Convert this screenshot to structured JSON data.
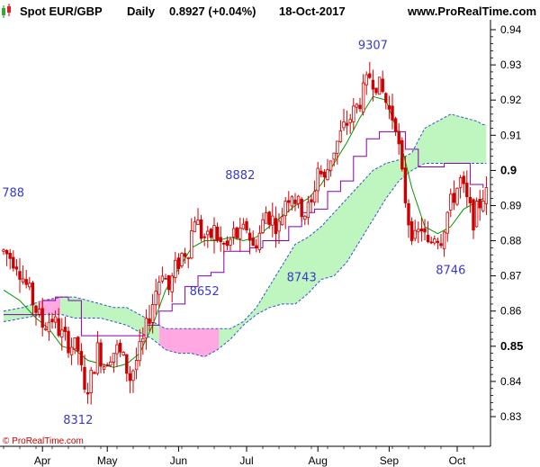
{
  "header": {
    "title": "Spot EUR/GBP",
    "period": "Daily",
    "quote": "0.8927 (+0.04%)",
    "date": "18-Oct-2017",
    "site": "www.ProRealTime.com"
  },
  "copyright": "© ProRealTime.com",
  "colors": {
    "up_candle": "#cc0000",
    "down_candle": "#cc0000",
    "tenkan": "#009900",
    "kijun": "#8800aa",
    "cloud_bull": "#bff5bf",
    "cloud_bear": "#ff99dd",
    "cloud_edge": "#3355cc",
    "annotation": "#3a3ac8"
  },
  "chart_data": {
    "type": "candlestick",
    "indicator": "ichimoku",
    "ylim": [
      0.825,
      0.945
    ],
    "yticks": [
      {
        "v": 0.83,
        "label": "0.83",
        "bold": false
      },
      {
        "v": 0.84,
        "label": "0.84",
        "bold": false
      },
      {
        "v": 0.85,
        "label": "0.85",
        "bold": true
      },
      {
        "v": 0.86,
        "label": "0.86",
        "bold": false
      },
      {
        "v": 0.87,
        "label": "0.87",
        "bold": false
      },
      {
        "v": 0.88,
        "label": "0.88",
        "bold": false
      },
      {
        "v": 0.89,
        "label": "0.89",
        "bold": false
      },
      {
        "v": 0.9,
        "label": "0.9",
        "bold": true
      },
      {
        "v": 0.91,
        "label": "0.91",
        "bold": false
      },
      {
        "v": 0.92,
        "label": "0.92",
        "bold": false
      },
      {
        "v": 0.93,
        "label": "0.93",
        "bold": false
      },
      {
        "v": 0.94,
        "label": "0.94",
        "bold": false
      }
    ],
    "months": [
      {
        "label": "Apr",
        "day": 12
      },
      {
        "label": "May",
        "day": 32
      },
      {
        "label": "Jun",
        "day": 54
      },
      {
        "label": "Jul",
        "day": 75
      },
      {
        "label": "Aug",
        "day": 97
      },
      {
        "label": "Sep",
        "day": 119
      },
      {
        "label": "Oct",
        "day": 140
      }
    ],
    "day_count": 150,
    "close_path": [
      [
        0,
        0.877
      ],
      [
        4,
        0.874
      ],
      [
        8,
        0.865
      ],
      [
        12,
        0.856
      ],
      [
        15,
        0.858
      ],
      [
        18,
        0.853
      ],
      [
        20,
        0.851
      ],
      [
        23,
        0.849
      ],
      [
        25,
        0.836
      ],
      [
        27,
        0.841
      ],
      [
        29,
        0.849
      ],
      [
        31,
        0.845
      ],
      [
        33,
        0.848
      ],
      [
        35,
        0.849
      ],
      [
        37,
        0.846
      ],
      [
        39,
        0.841
      ],
      [
        41,
        0.846
      ],
      [
        43,
        0.851
      ],
      [
        45,
        0.859
      ],
      [
        47,
        0.866
      ],
      [
        49,
        0.872
      ],
      [
        51,
        0.866
      ],
      [
        53,
        0.872
      ],
      [
        55,
        0.876
      ],
      [
        57,
        0.878
      ],
      [
        59,
        0.887
      ],
      [
        61,
        0.882
      ],
      [
        63,
        0.88
      ],
      [
        65,
        0.883
      ],
      [
        67,
        0.879
      ],
      [
        69,
        0.878
      ],
      [
        71,
        0.882
      ],
      [
        73,
        0.881
      ],
      [
        75,
        0.884
      ],
      [
        77,
        0.878
      ],
      [
        79,
        0.882
      ],
      [
        81,
        0.888
      ],
      [
        83,
        0.886
      ],
      [
        85,
        0.884
      ],
      [
        87,
        0.892
      ],
      [
        89,
        0.894
      ],
      [
        91,
        0.89
      ],
      [
        93,
        0.888
      ],
      [
        95,
        0.89
      ],
      [
        97,
        0.901
      ],
      [
        99,
        0.897
      ],
      [
        101,
        0.904
      ],
      [
        103,
        0.908
      ],
      [
        105,
        0.912
      ],
      [
        107,
        0.915
      ],
      [
        109,
        0.918
      ],
      [
        111,
        0.922
      ],
      [
        113,
        0.927
      ],
      [
        115,
        0.925
      ],
      [
        117,
        0.922
      ],
      [
        119,
        0.917
      ],
      [
        121,
        0.914
      ],
      [
        123,
        0.898
      ],
      [
        125,
        0.886
      ],
      [
        127,
        0.88
      ],
      [
        129,
        0.884
      ],
      [
        131,
        0.878
      ],
      [
        133,
        0.882
      ],
      [
        135,
        0.881
      ],
      [
        137,
        0.888
      ],
      [
        139,
        0.893
      ],
      [
        141,
        0.897
      ],
      [
        143,
        0.891
      ],
      [
        145,
        0.886
      ],
      [
        148,
        0.893
      ]
    ],
    "tenkan": [
      [
        0,
        0.866
      ],
      [
        5,
        0.863
      ],
      [
        10,
        0.858
      ],
      [
        14,
        0.855
      ],
      [
        18,
        0.85
      ],
      [
        22,
        0.849
      ],
      [
        26,
        0.846
      ],
      [
        30,
        0.845
      ],
      [
        34,
        0.844
      ],
      [
        38,
        0.845
      ],
      [
        42,
        0.848
      ],
      [
        46,
        0.856
      ],
      [
        50,
        0.866
      ],
      [
        54,
        0.872
      ],
      [
        58,
        0.878
      ],
      [
        62,
        0.88
      ],
      [
        66,
        0.88
      ],
      [
        70,
        0.881
      ],
      [
        74,
        0.88
      ],
      [
        78,
        0.881
      ],
      [
        82,
        0.884
      ],
      [
        86,
        0.887
      ],
      [
        90,
        0.89
      ],
      [
        94,
        0.892
      ],
      [
        98,
        0.896
      ],
      [
        102,
        0.902
      ],
      [
        106,
        0.908
      ],
      [
        110,
        0.915
      ],
      [
        114,
        0.921
      ],
      [
        118,
        0.92
      ],
      [
        122,
        0.91
      ],
      [
        126,
        0.895
      ],
      [
        130,
        0.884
      ],
      [
        134,
        0.882
      ],
      [
        138,
        0.884
      ],
      [
        142,
        0.889
      ],
      [
        146,
        0.891
      ],
      [
        148,
        0.892
      ]
    ],
    "kijun": [
      [
        0,
        0.859
      ],
      [
        8,
        0.859
      ],
      [
        12,
        0.863
      ],
      [
        16,
        0.864
      ],
      [
        20,
        0.863
      ],
      [
        24,
        0.853
      ],
      [
        28,
        0.853
      ],
      [
        36,
        0.853
      ],
      [
        40,
        0.853
      ],
      [
        44,
        0.856
      ],
      [
        48,
        0.86
      ],
      [
        52,
        0.862
      ],
      [
        56,
        0.867
      ],
      [
        60,
        0.87
      ],
      [
        64,
        0.871
      ],
      [
        68,
        0.877
      ],
      [
        72,
        0.877
      ],
      [
        76,
        0.878
      ],
      [
        80,
        0.88
      ],
      [
        84,
        0.88
      ],
      [
        88,
        0.884
      ],
      [
        92,
        0.888
      ],
      [
        96,
        0.889
      ],
      [
        100,
        0.894
      ],
      [
        104,
        0.897
      ],
      [
        108,
        0.904
      ],
      [
        112,
        0.909
      ],
      [
        116,
        0.911
      ],
      [
        120,
        0.911
      ],
      [
        124,
        0.906
      ],
      [
        128,
        0.901
      ],
      [
        132,
        0.901
      ],
      [
        136,
        0.902
      ],
      [
        140,
        0.902
      ],
      [
        144,
        0.896
      ],
      [
        148,
        0.895
      ]
    ],
    "cloud_upper": [
      [
        0,
        0.86
      ],
      [
        6,
        0.861
      ],
      [
        12,
        0.863
      ],
      [
        18,
        0.864
      ],
      [
        22,
        0.864
      ],
      [
        26,
        0.863
      ],
      [
        30,
        0.862
      ],
      [
        34,
        0.861
      ],
      [
        38,
        0.861
      ],
      [
        42,
        0.859
      ],
      [
        46,
        0.857
      ],
      [
        50,
        0.855
      ],
      [
        54,
        0.855
      ],
      [
        58,
        0.855
      ],
      [
        62,
        0.855
      ],
      [
        66,
        0.855
      ],
      [
        70,
        0.855
      ],
      [
        74,
        0.857
      ],
      [
        78,
        0.861
      ],
      [
        82,
        0.867
      ],
      [
        86,
        0.873
      ],
      [
        90,
        0.879
      ],
      [
        94,
        0.881
      ],
      [
        98,
        0.884
      ],
      [
        102,
        0.888
      ],
      [
        106,
        0.892
      ],
      [
        110,
        0.896
      ],
      [
        114,
        0.9
      ],
      [
        118,
        0.902
      ],
      [
        122,
        0.903
      ],
      [
        126,
        0.905
      ],
      [
        130,
        0.912
      ],
      [
        134,
        0.914
      ],
      [
        138,
        0.916
      ],
      [
        142,
        0.915
      ],
      [
        146,
        0.914
      ],
      [
        148,
        0.913
      ]
    ],
    "cloud_lower": [
      [
        0,
        0.857
      ],
      [
        6,
        0.858
      ],
      [
        12,
        0.859
      ],
      [
        18,
        0.859
      ],
      [
        22,
        0.858
      ],
      [
        26,
        0.858
      ],
      [
        30,
        0.858
      ],
      [
        34,
        0.857
      ],
      [
        38,
        0.856
      ],
      [
        42,
        0.854
      ],
      [
        46,
        0.852
      ],
      [
        50,
        0.849
      ],
      [
        54,
        0.848
      ],
      [
        58,
        0.848
      ],
      [
        62,
        0.847
      ],
      [
        66,
        0.849
      ],
      [
        70,
        0.852
      ],
      [
        74,
        0.856
      ],
      [
        78,
        0.859
      ],
      [
        82,
        0.861
      ],
      [
        86,
        0.862
      ],
      [
        90,
        0.862
      ],
      [
        94,
        0.865
      ],
      [
        98,
        0.869
      ],
      [
        102,
        0.87
      ],
      [
        106,
        0.874
      ],
      [
        110,
        0.88
      ],
      [
        114,
        0.886
      ],
      [
        118,
        0.892
      ],
      [
        122,
        0.897
      ],
      [
        126,
        0.9
      ],
      [
        130,
        0.902
      ],
      [
        134,
        0.902
      ],
      [
        138,
        0.902
      ],
      [
        142,
        0.902
      ],
      [
        146,
        0.902
      ],
      [
        148,
        0.902
      ]
    ],
    "annotations": [
      {
        "text": "788",
        "day": -0.5,
        "price": 0.8925
      },
      {
        "text": "8312",
        "day": 23,
        "price": 0.828
      },
      {
        "text": "8652",
        "day": 62,
        "price": 0.8645
      },
      {
        "text": "8743",
        "day": 92,
        "price": 0.8685
      },
      {
        "text": "8882",
        "day": 73,
        "price": 0.8975
      },
      {
        "text": "9307",
        "day": 114,
        "price": 0.9345
      },
      {
        "text": "8746",
        "day": 138,
        "price": 0.8705
      }
    ]
  }
}
